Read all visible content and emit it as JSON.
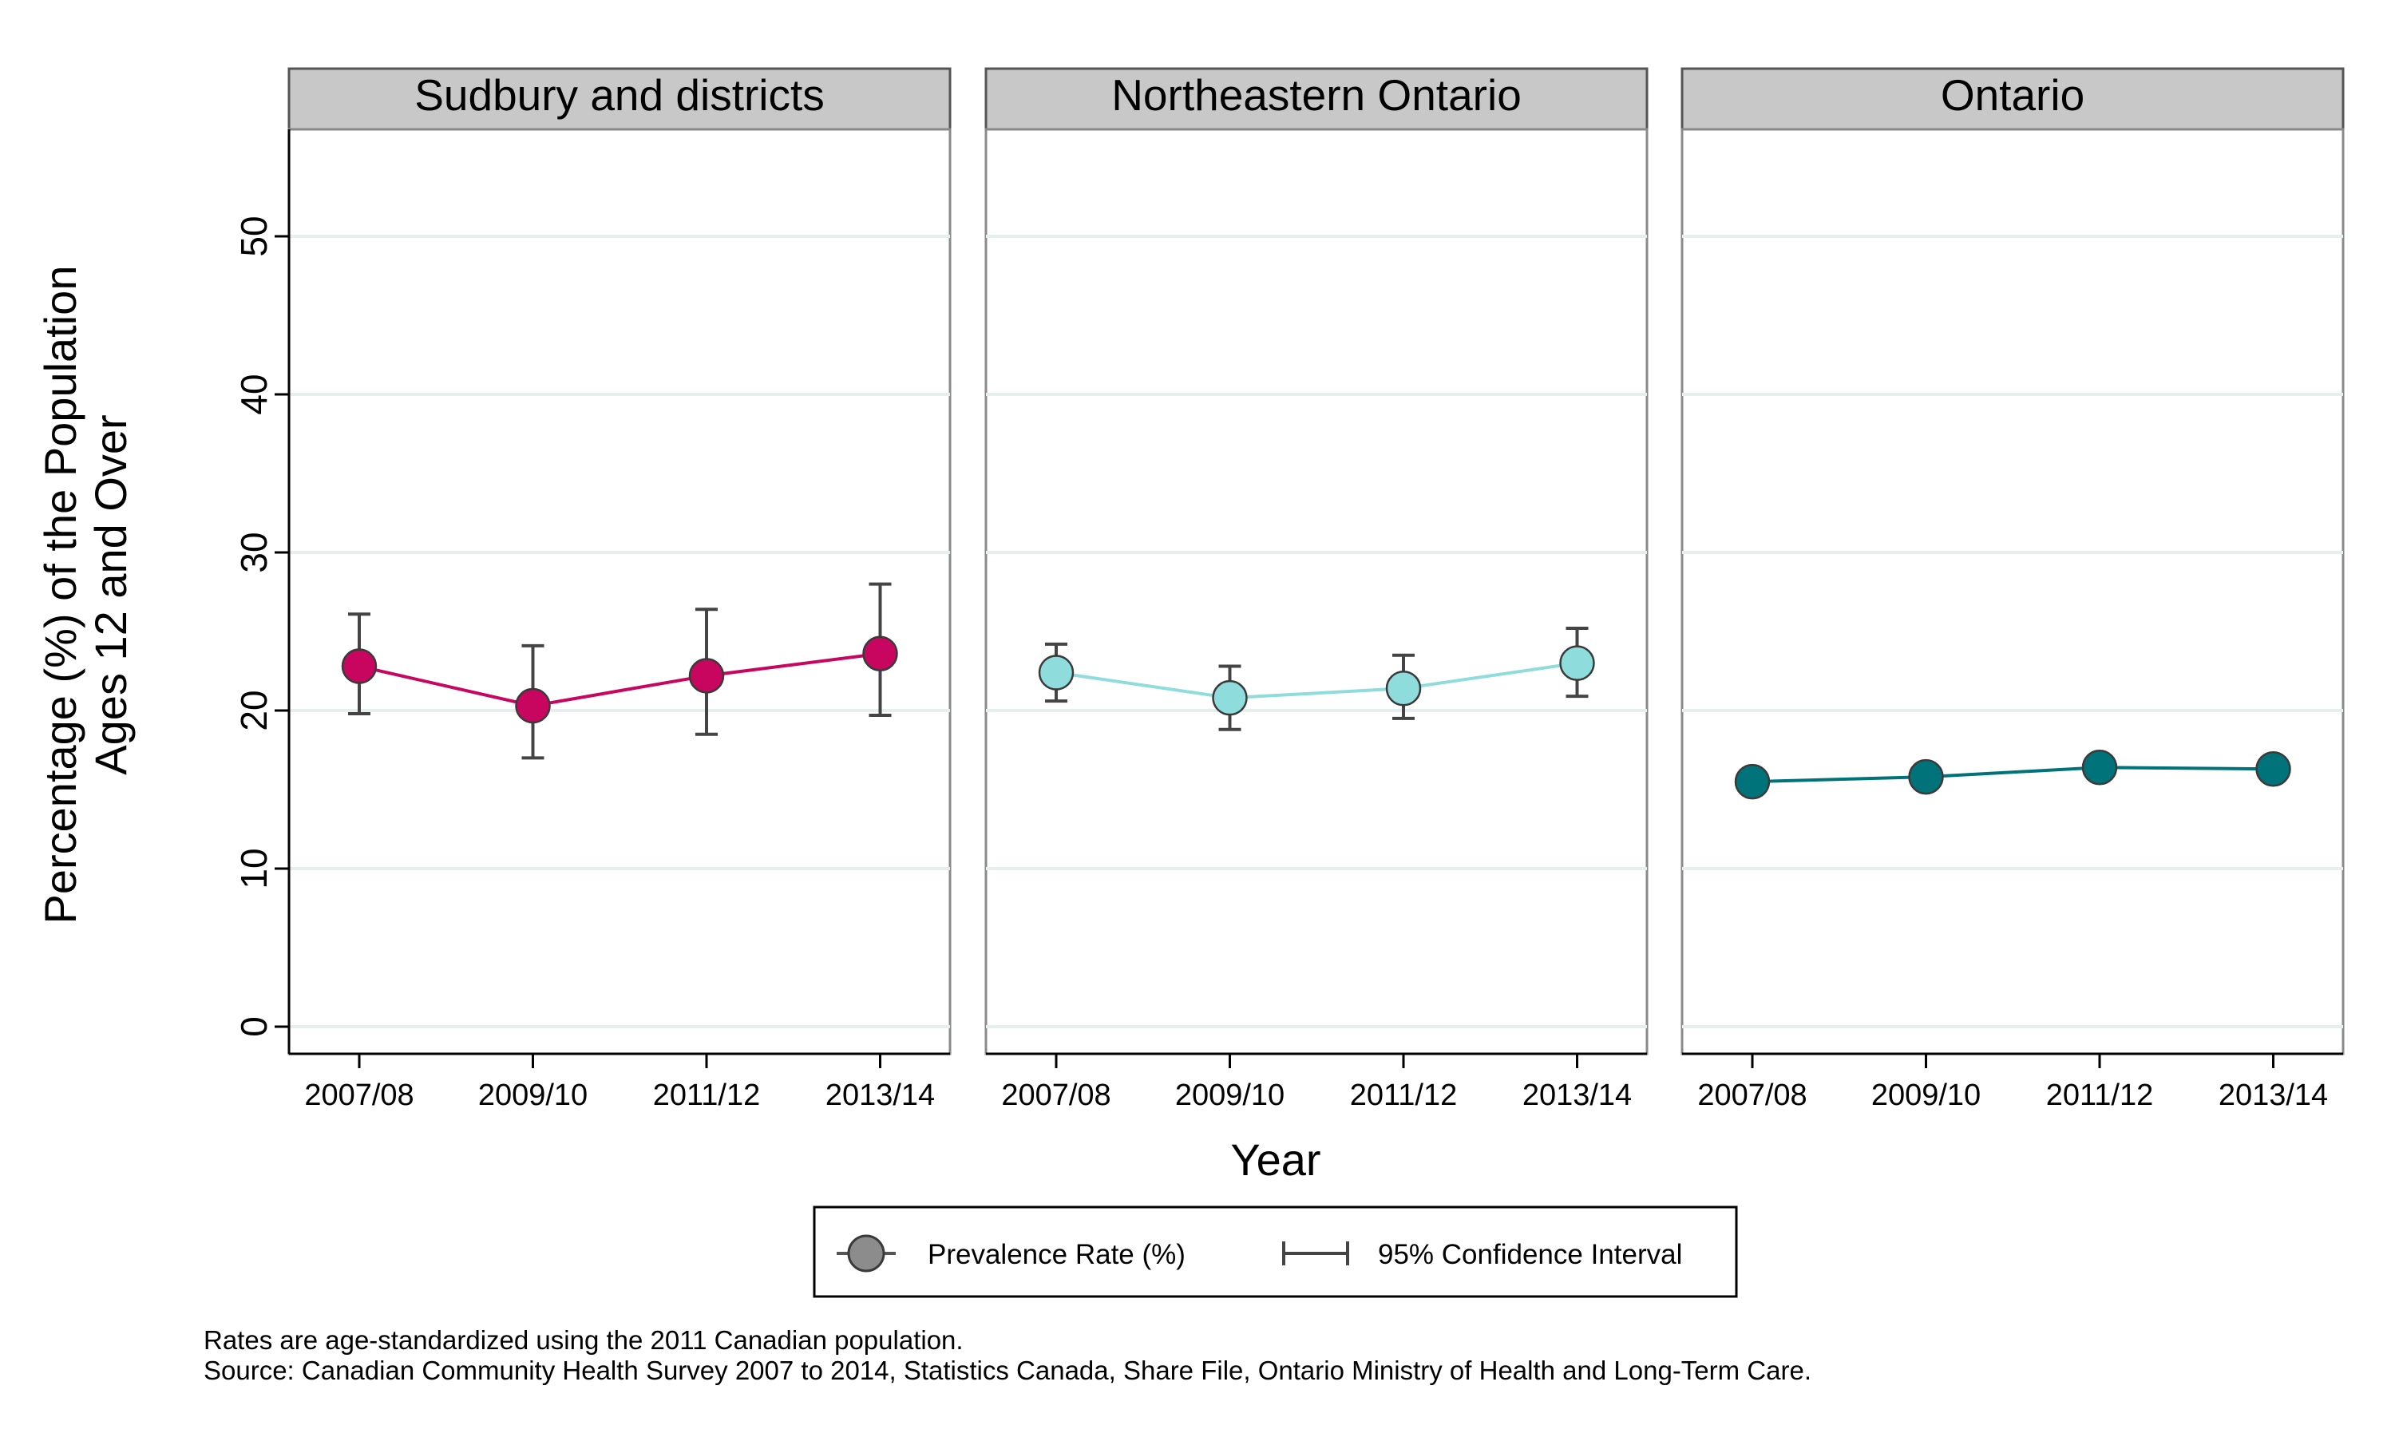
{
  "ylabel_line1": "Percentage (%) of the Population",
  "ylabel_line2": "Ages 12 and Over",
  "xlabel": "Year",
  "legend": {
    "rate_label": "Prevalence Rate (%)",
    "ci_label": "95% Confidence Interval"
  },
  "notes": {
    "line1": "Rates are age-standardized using the 2011 Canadian population.",
    "line2": "Source: Canadian Community Health Survey 2007 to 2014, Statistics Canada, Share File, Ontario Ministry of Health and Long-Term Care."
  },
  "colors": {
    "sudbury": "#c8065f",
    "northeastern": "#8fdcdc",
    "ontario": "#00737a",
    "grid": "#e6eeee",
    "strip": "#c8c8c8",
    "ci": "#444444"
  },
  "chart_data": {
    "type": "line",
    "categories": [
      "2007/08",
      "2009/10",
      "2011/12",
      "2013/14"
    ],
    "ylim": [
      0,
      55
    ],
    "yticks": [
      0,
      10,
      20,
      30,
      40,
      50
    ],
    "grid": true,
    "legend_position": "bottom",
    "panels": [
      {
        "title": "Sudbury and districts",
        "values": [
          22.8,
          20.3,
          22.2,
          23.6
        ],
        "ci_low": [
          19.8,
          17.0,
          18.5,
          19.7
        ],
        "ci_high": [
          26.1,
          24.1,
          26.4,
          28.0
        ]
      },
      {
        "title": "Northeastern Ontario",
        "values": [
          22.4,
          20.8,
          21.4,
          23.0
        ],
        "ci_low": [
          20.6,
          18.8,
          19.5,
          20.9
        ],
        "ci_high": [
          24.2,
          22.8,
          23.5,
          25.2
        ]
      },
      {
        "title": "Ontario",
        "values": [
          15.5,
          15.8,
          16.4,
          16.3
        ],
        "ci_low": [],
        "ci_high": []
      }
    ]
  }
}
